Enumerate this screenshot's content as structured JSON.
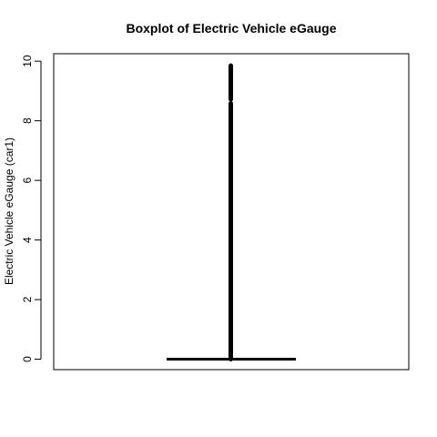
{
  "chart_data": {
    "type": "boxplot",
    "title": "Boxplot of Electric Vehicle eGauge",
    "xlabel": "",
    "ylabel": "Electric Vehicle eGauge (car1)",
    "ylim": [
      -0.35,
      10.25
    ],
    "yticks": [
      0,
      2,
      4,
      6,
      8,
      10
    ],
    "ytick_labels": [
      "0",
      "2",
      "4",
      "6",
      "8",
      "10"
    ],
    "box": {
      "min": 0,
      "q1": 0,
      "median": 0,
      "q3": 0,
      "max": 0,
      "outlier_range": [
        0,
        9.85
      ],
      "outlier_gaps": [
        8.58,
        8.72
      ]
    },
    "frame": true,
    "grid": false
  }
}
